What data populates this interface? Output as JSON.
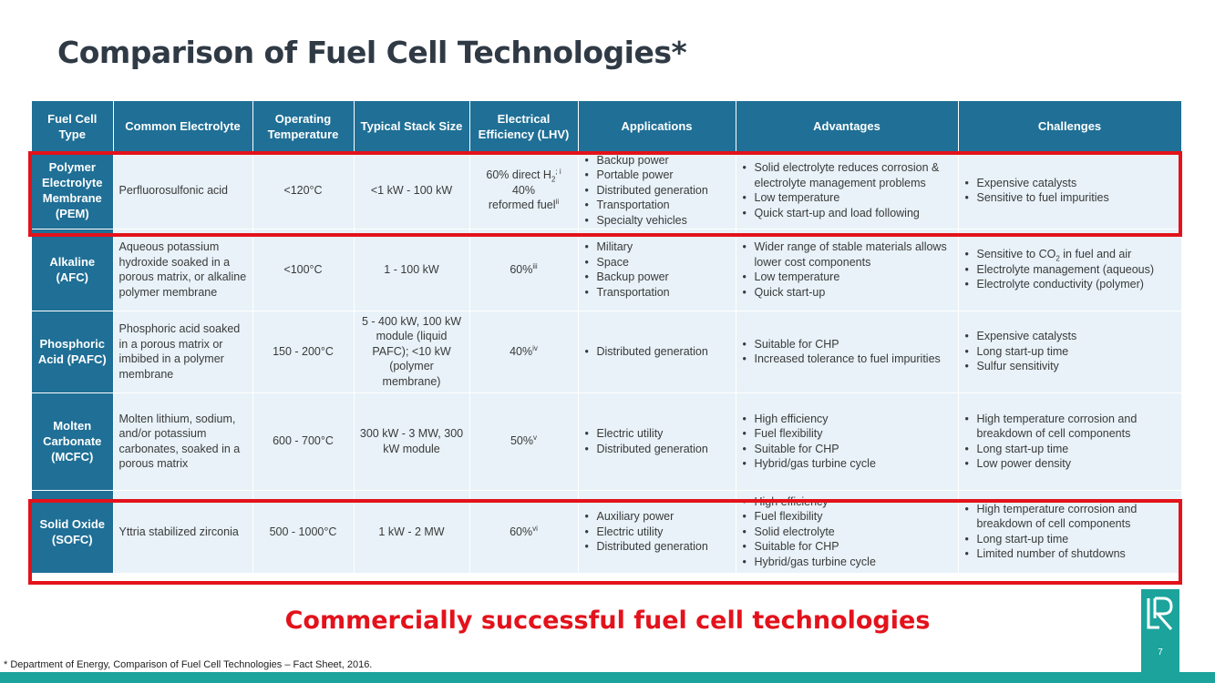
{
  "title": "Comparison of Fuel Cell Technologies*",
  "table": {
    "headers": [
      "Fuel Cell Type",
      "Common Electrolyte",
      "Operating Temperature",
      "Typical Stack Size",
      "Electrical Efficiency (LHV)",
      "Applications",
      "Advantages",
      "Challenges"
    ],
    "rows": {
      "pem": {
        "type": "Polymer Electrolyte Membrane (PEM)",
        "electrolyte": "Perfluorosulfonic acid",
        "temperature": "<120°C",
        "stack": "<1 kW - 100 kW",
        "eff_line1": "60% direct H",
        "eff_sub": "2",
        "eff_sup1": "; i",
        "eff_line2": "40%",
        "eff_line3": "reformed fuel",
        "eff_sup2": "ii",
        "applications": [
          "Backup power",
          "Portable power",
          "Distributed generation",
          "Transportation",
          "Specialty vehicles"
        ],
        "advantages": [
          "Solid electrolyte reduces corrosion & electrolyte management problems",
          "Low temperature",
          "Quick start-up and load following"
        ],
        "challenges": [
          "Expensive catalysts",
          "Sensitive to fuel impurities"
        ]
      },
      "afc": {
        "type": "Alkaline (AFC)",
        "electrolyte": "Aqueous potassium hydroxide soaked in a porous matrix, or alkaline polymer membrane",
        "temperature": "<100°C",
        "stack": "1 - 100 kW",
        "eff": "60%",
        "eff_sup": "iii",
        "applications": [
          "Military",
          "Space",
          "Backup power",
          "Transportation"
        ],
        "advantages": [
          "Wider range of stable materials allows lower cost components",
          "Low temperature",
          "Quick start-up"
        ],
        "challenge1_pre": "Sensitive to CO",
        "challenge1_sub": "2",
        "challenge1_post": " in fuel and air",
        "challenges_rest": [
          "Electrolyte management (aqueous)",
          "Electrolyte conductivity (polymer)"
        ]
      },
      "pafc": {
        "type": "Phosphoric Acid (PAFC)",
        "electrolyte": "Phosphoric acid soaked in a porous matrix or imbibed in a polymer membrane",
        "temperature": "150 - 200°C",
        "stack": "5 - 400 kW, 100 kW module (liquid PAFC); <10 kW (polymer membrane)",
        "eff": "40%",
        "eff_sup": "iv",
        "applications": [
          "Distributed generation"
        ],
        "advantages": [
          "Suitable for CHP",
          "Increased tolerance to fuel impurities"
        ],
        "challenges": [
          "Expensive catalysts",
          "Long start-up time",
          "Sulfur sensitivity"
        ]
      },
      "mcfc": {
        "type": "Molten Carbonate (MCFC)",
        "electrolyte": "Molten lithium, sodium, and/or potassium carbonates, soaked in a porous matrix",
        "temperature": "600 - 700°C",
        "stack": "300 kW - 3 MW, 300 kW module",
        "eff": "50%",
        "eff_sup": "v",
        "applications": [
          "Electric utility",
          "Distributed generation"
        ],
        "advantages": [
          "High efficiency",
          "Fuel flexibility",
          "Suitable for CHP",
          "Hybrid/gas turbine cycle"
        ],
        "challenges": [
          "High temperature corrosion and breakdown of cell components",
          "Long start-up time",
          "Low power density"
        ]
      },
      "sofc": {
        "type": "Solid Oxide (SOFC)",
        "electrolyte": "Yttria stabilized zirconia",
        "temperature": "500 - 1000°C",
        "stack": "1 kW - 2 MW",
        "eff": "60%",
        "eff_sup": "vi",
        "applications": [
          "Auxiliary power",
          "Electric utility",
          "Distributed generation"
        ],
        "advantages": [
          "High efficiency",
          "Fuel flexibility",
          "Solid electrolyte",
          "Suitable for CHP",
          "Hybrid/gas turbine cycle"
        ],
        "challenges": [
          "High temperature corrosion and breakdown of cell components",
          "Long start-up time",
          "Limited number of shutdowns"
        ]
      }
    }
  },
  "highlight_caption": "Commercially successful fuel cell technologies",
  "footnote": "* Department of Energy, Comparison of Fuel Cell Technologies – Fact Sheet, 2016.",
  "page_number": "7",
  "colors": {
    "header_blue": "#1f6f96",
    "row_bg": "#e8f2f8",
    "highlight_red": "#e3121b",
    "teal": "#1ba39c",
    "title": "#2f3a45"
  },
  "logo": "lr-logo-icon"
}
